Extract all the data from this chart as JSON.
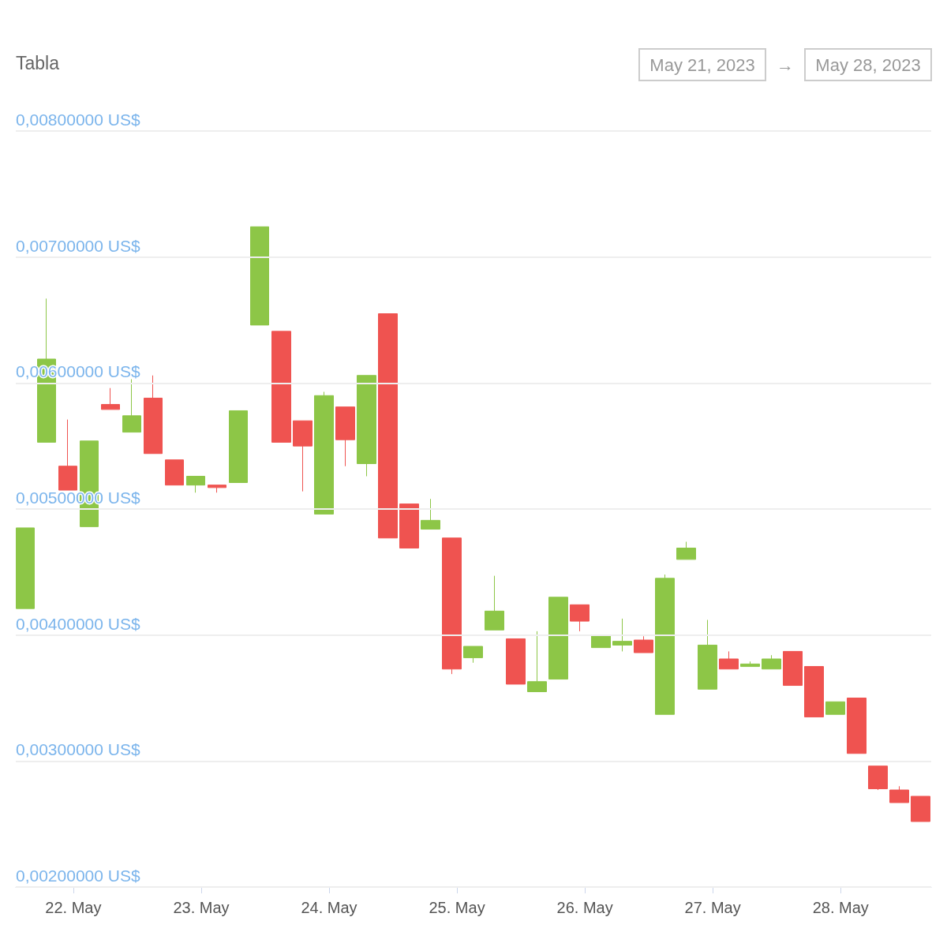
{
  "chart_data": {
    "type": "candlestick",
    "title": "Tabla",
    "annotations": [
      "May 21, 2023",
      "→",
      "May 28, 2023"
    ],
    "x": [
      "2023-05-21T15:00",
      "2023-05-21T19:00",
      "2023-05-21T23:00",
      "2023-05-22T03:00",
      "2023-05-22T07:00",
      "2023-05-22T11:00",
      "2023-05-22T15:00",
      "2023-05-22T19:00",
      "2023-05-22T23:00",
      "2023-05-23T03:00",
      "2023-05-23T07:00",
      "2023-05-23T11:00",
      "2023-05-23T15:00",
      "2023-05-23T19:00",
      "2023-05-23T23:00",
      "2023-05-24T03:00",
      "2023-05-24T07:00",
      "2023-05-24T11:00",
      "2023-05-24T15:00",
      "2023-05-24T19:00",
      "2023-05-24T23:00",
      "2023-05-25T03:00",
      "2023-05-25T07:00",
      "2023-05-25T11:00",
      "2023-05-25T15:00",
      "2023-05-25T19:00",
      "2023-05-25T23:00",
      "2023-05-26T03:00",
      "2023-05-26T07:00",
      "2023-05-26T11:00",
      "2023-05-26T15:00",
      "2023-05-26T19:00",
      "2023-05-26T23:00",
      "2023-05-27T03:00",
      "2023-05-27T07:00",
      "2023-05-27T11:00",
      "2023-05-27T15:00",
      "2023-05-27T19:00",
      "2023-05-27T23:00",
      "2023-05-28T03:00",
      "2023-05-28T07:00",
      "2023-05-28T11:00",
      "2023-05-28T15:00"
    ],
    "ohlc": [
      [
        0.00421,
        0.00485,
        0.00421,
        0.00485
      ],
      [
        0.00553,
        0.00667,
        0.00553,
        0.00619
      ],
      [
        0.00534,
        0.00571,
        0.00515,
        0.00515
      ],
      [
        0.00486,
        0.00554,
        0.00486,
        0.00554
      ],
      [
        0.00583,
        0.00596,
        0.00579,
        0.00579
      ],
      [
        0.00561,
        0.00603,
        0.00561,
        0.00574
      ],
      [
        0.00588,
        0.00606,
        0.00544,
        0.00544
      ],
      [
        0.00539,
        0.00539,
        0.00519,
        0.00519
      ],
      [
        0.00519,
        0.00526,
        0.00513,
        0.00526
      ],
      [
        0.00519,
        0.00519,
        0.00513,
        0.00517
      ],
      [
        0.00521,
        0.00578,
        0.00521,
        0.00578
      ],
      [
        0.00646,
        0.00724,
        0.00646,
        0.00724
      ],
      [
        0.00641,
        0.00641,
        0.00553,
        0.00553
      ],
      [
        0.0057,
        0.0057,
        0.00514,
        0.0055
      ],
      [
        0.00496,
        0.00593,
        0.00496,
        0.0059
      ],
      [
        0.00581,
        0.00581,
        0.00534,
        0.00555
      ],
      [
        0.00536,
        0.00606,
        0.00526,
        0.00606
      ],
      [
        0.00655,
        0.00655,
        0.00477,
        0.00477
      ],
      [
        0.00504,
        0.00504,
        0.00469,
        0.00469
      ],
      [
        0.00484,
        0.00508,
        0.00484,
        0.00491
      ],
      [
        0.00477,
        0.00477,
        0.00369,
        0.00373
      ],
      [
        0.00382,
        0.00391,
        0.00378,
        0.00391
      ],
      [
        0.00404,
        0.00447,
        0.00404,
        0.00419
      ],
      [
        0.00397,
        0.00397,
        0.00361,
        0.00361
      ],
      [
        0.00355,
        0.00403,
        0.00355,
        0.00363
      ],
      [
        0.00365,
        0.0043,
        0.00365,
        0.0043
      ],
      [
        0.00424,
        0.00424,
        0.00403,
        0.00411
      ],
      [
        0.0039,
        0.004,
        0.0039,
        0.004
      ],
      [
        0.00392,
        0.00413,
        0.00387,
        0.00395
      ],
      [
        0.00396,
        0.00399,
        0.00386,
        0.00386
      ],
      [
        0.00337,
        0.00448,
        0.00337,
        0.00445
      ],
      [
        0.0046,
        0.00474,
        0.0046,
        0.00469
      ],
      [
        0.00357,
        0.00412,
        0.00357,
        0.00392
      ],
      [
        0.00381,
        0.00387,
        0.00373,
        0.00373
      ],
      [
        0.00375,
        0.00379,
        0.00375,
        0.00377
      ],
      [
        0.00373,
        0.00384,
        0.00373,
        0.00381
      ],
      [
        0.00387,
        0.00387,
        0.0036,
        0.0036
      ],
      [
        0.00375,
        0.00375,
        0.00335,
        0.00335
      ],
      [
        0.00337,
        0.00347,
        0.00337,
        0.00347
      ],
      [
        0.0035,
        0.0035,
        0.00306,
        0.00306
      ],
      [
        0.00296,
        0.00296,
        0.00277,
        0.00278
      ],
      [
        0.00277,
        0.0028,
        0.00267,
        0.00267
      ],
      [
        0.00272,
        0.00272,
        0.00252,
        0.00252
      ]
    ],
    "colors": [
      "#8dc647",
      "#8dc647",
      "#ef5350",
      "#8dc647",
      "#ef5350",
      "#8dc647",
      "#ef5350",
      "#ef5350",
      "#8dc647",
      "#ef5350",
      "#8dc647",
      "#8dc647",
      "#ef5350",
      "#ef5350",
      "#8dc647",
      "#ef5350",
      "#8dc647",
      "#ef5350",
      "#ef5350",
      "#8dc647",
      "#ef5350",
      "#8dc647",
      "#8dc647",
      "#ef5350",
      "#8dc647",
      "#8dc647",
      "#ef5350",
      "#8dc647",
      "#8dc647",
      "#ef5350",
      "#8dc647",
      "#8dc647",
      "#8dc647",
      "#ef5350",
      "#8dc647",
      "#8dc647",
      "#ef5350",
      "#ef5350",
      "#8dc647",
      "#ef5350",
      "#ef5350",
      "#ef5350",
      "#ef5350"
    ],
    "xlim": [
      "2023-05-21T13:12",
      "2023-05-28T17:00"
    ],
    "xticks": [
      {
        "value": "2023-05-22",
        "label": "22. May"
      },
      {
        "value": "2023-05-23",
        "label": "23. May"
      },
      {
        "value": "2023-05-24",
        "label": "24. May"
      },
      {
        "value": "2023-05-25",
        "label": "25. May"
      },
      {
        "value": "2023-05-26",
        "label": "26. May"
      },
      {
        "value": "2023-05-27",
        "label": "27. May"
      },
      {
        "value": "2023-05-28",
        "label": "28. May"
      }
    ],
    "ylim": [
      0.002,
      0.008
    ],
    "yticks": [
      {
        "value": 0.002,
        "label": "0,00200000 US$"
      },
      {
        "value": 0.003,
        "label": "0,00300000 US$"
      },
      {
        "value": 0.004,
        "label": "0,00400000 US$"
      },
      {
        "value": 0.005,
        "label": "0,00500000 US$"
      },
      {
        "value": 0.006,
        "label": "0,00600000 US$"
      },
      {
        "value": 0.007,
        "label": "0,00700000 US$"
      },
      {
        "value": 0.008,
        "label": "0,00800000 US$"
      }
    ],
    "grid": "y"
  }
}
